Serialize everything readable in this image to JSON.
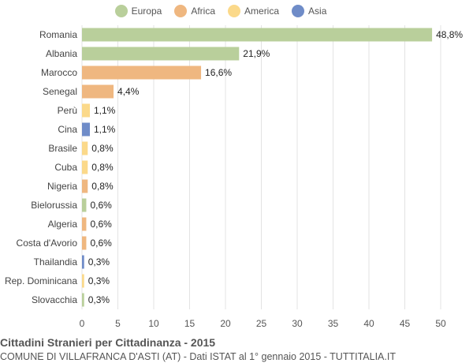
{
  "chart_data": {
    "type": "bar",
    "orientation": "horizontal",
    "title": "Cittadini Stranieri per Cittadinanza - 2015",
    "subtitle": "COMUNE DI VILLAFRANCA D'ASTI (AT) - Dati ISTAT al 1° gennaio 2015 - TUTTITALIA.IT",
    "xlim": [
      0,
      50
    ],
    "xticks": [
      0,
      5,
      10,
      15,
      20,
      25,
      30,
      35,
      40,
      45,
      50
    ],
    "grid": true,
    "legend_position": "top",
    "legend": [
      {
        "name": "Europa",
        "color": "#b9cf9b"
      },
      {
        "name": "Africa",
        "color": "#efb780"
      },
      {
        "name": "America",
        "color": "#fbd98a"
      },
      {
        "name": "Asia",
        "color": "#6f8cc8"
      }
    ],
    "categories": [
      "Romania",
      "Albania",
      "Marocco",
      "Senegal",
      "Perù",
      "Cina",
      "Brasile",
      "Cuba",
      "Nigeria",
      "Bielorussia",
      "Algeria",
      "Costa d'Avorio",
      "Thailandia",
      "Rep. Dominicana",
      "Slovacchia"
    ],
    "values": [
      48.8,
      21.9,
      16.6,
      4.4,
      1.1,
      1.1,
      0.8,
      0.8,
      0.8,
      0.6,
      0.6,
      0.6,
      0.3,
      0.3,
      0.3
    ],
    "value_labels": [
      "48,8%",
      "21,9%",
      "16,6%",
      "4,4%",
      "1,1%",
      "1,1%",
      "0,8%",
      "0,8%",
      "0,8%",
      "0,6%",
      "0,6%",
      "0,6%",
      "0,3%",
      "0,3%",
      "0,3%"
    ],
    "continent": [
      "Europa",
      "Europa",
      "Africa",
      "Africa",
      "America",
      "Asia",
      "America",
      "America",
      "Africa",
      "Europa",
      "Africa",
      "Africa",
      "Asia",
      "America",
      "Europa"
    ]
  }
}
